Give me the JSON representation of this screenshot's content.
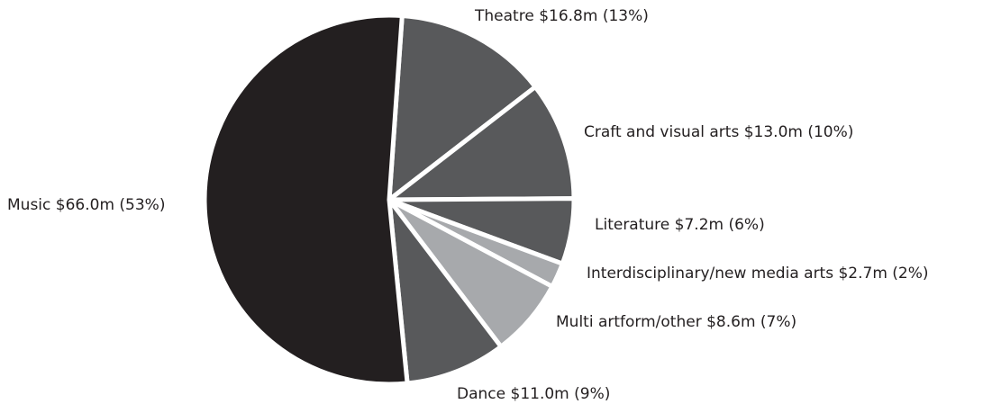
{
  "chart_data": {
    "type": "pie",
    "categories": [
      "Theatre",
      "Craft and visual arts",
      "Literature",
      "Interdisciplinary/new media arts",
      "Multi artform/other",
      "Dance",
      "Music"
    ],
    "values": [
      16.8,
      13.0,
      7.2,
      2.7,
      8.6,
      11.0,
      66.0
    ],
    "value_labels": [
      "$16.8m (13%)",
      "$13.0m (10%)",
      "$7.2m (6%)",
      "$2.7m (2%)",
      "$8.6m (7%)",
      "$11.0m (9%)",
      "$66.0m (53%)"
    ],
    "colors": [
      "#58595b",
      "#58595b",
      "#58595b",
      "#a7a9ac",
      "#a7a9ac",
      "#58595b",
      "#231f20"
    ]
  }
}
